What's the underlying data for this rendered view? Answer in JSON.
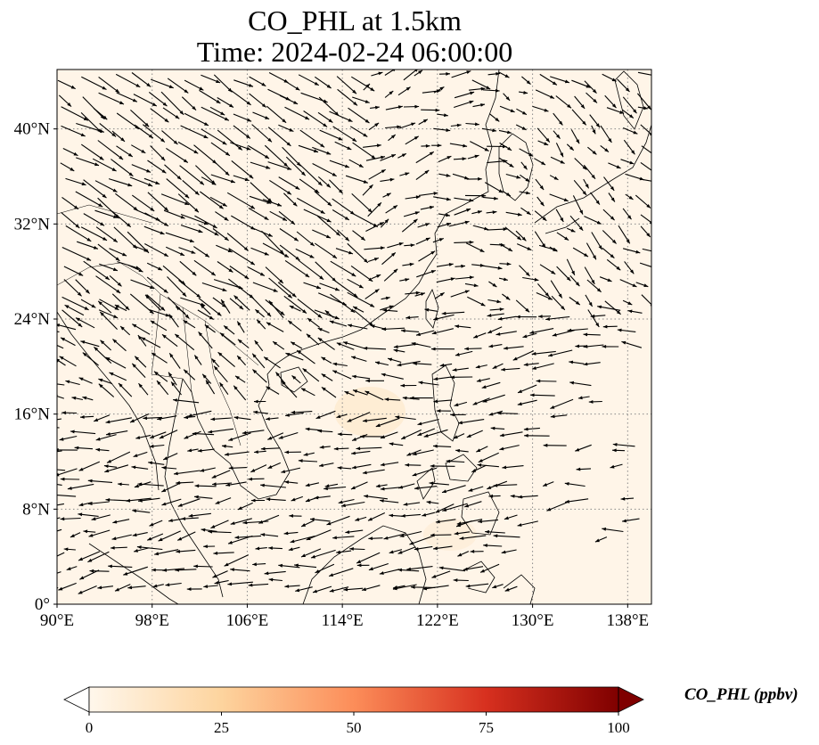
{
  "title": {
    "line1": "CO_PHL at 1.5km",
    "line2": "Time: 2024-02-24 06:00:00"
  },
  "map": {
    "projection": "PlateCarree",
    "lon_range": [
      90,
      140
    ],
    "lat_range": [
      0,
      45
    ],
    "gridlines": "dotted",
    "background_color": "#fff5e8",
    "coastline_color": "#000000",
    "vector_color": "#000000",
    "x_ticks": [
      {
        "value": 90,
        "label": "90°E"
      },
      {
        "value": 98,
        "label": "98°E"
      },
      {
        "value": 106,
        "label": "106°E"
      },
      {
        "value": 114,
        "label": "114°E"
      },
      {
        "value": 122,
        "label": "122°E"
      },
      {
        "value": 130,
        "label": "130°E"
      },
      {
        "value": 138,
        "label": "138°E"
      }
    ],
    "y_ticks": [
      {
        "value": 0,
        "label": "0°"
      },
      {
        "value": 8,
        "label": "8°N"
      },
      {
        "value": 16,
        "label": "16°N"
      },
      {
        "value": 24,
        "label": "24°N"
      },
      {
        "value": 32,
        "label": "32°N"
      },
      {
        "value": 40,
        "label": "40°N"
      }
    ]
  },
  "colorbar": {
    "label": "CO_PHL (ppbv)",
    "colormap": "OrRd",
    "range": [
      0,
      100
    ],
    "extend": "both",
    "ticks": [
      {
        "value": 0,
        "label": "0"
      },
      {
        "value": 25,
        "label": "25"
      },
      {
        "value": 50,
        "label": "50"
      },
      {
        "value": 75,
        "label": "75"
      },
      {
        "value": 100,
        "label": "100"
      }
    ],
    "stops": [
      "#fff7ec",
      "#fdd49e",
      "#fc8d59",
      "#d7301f",
      "#7f0000"
    ]
  }
}
